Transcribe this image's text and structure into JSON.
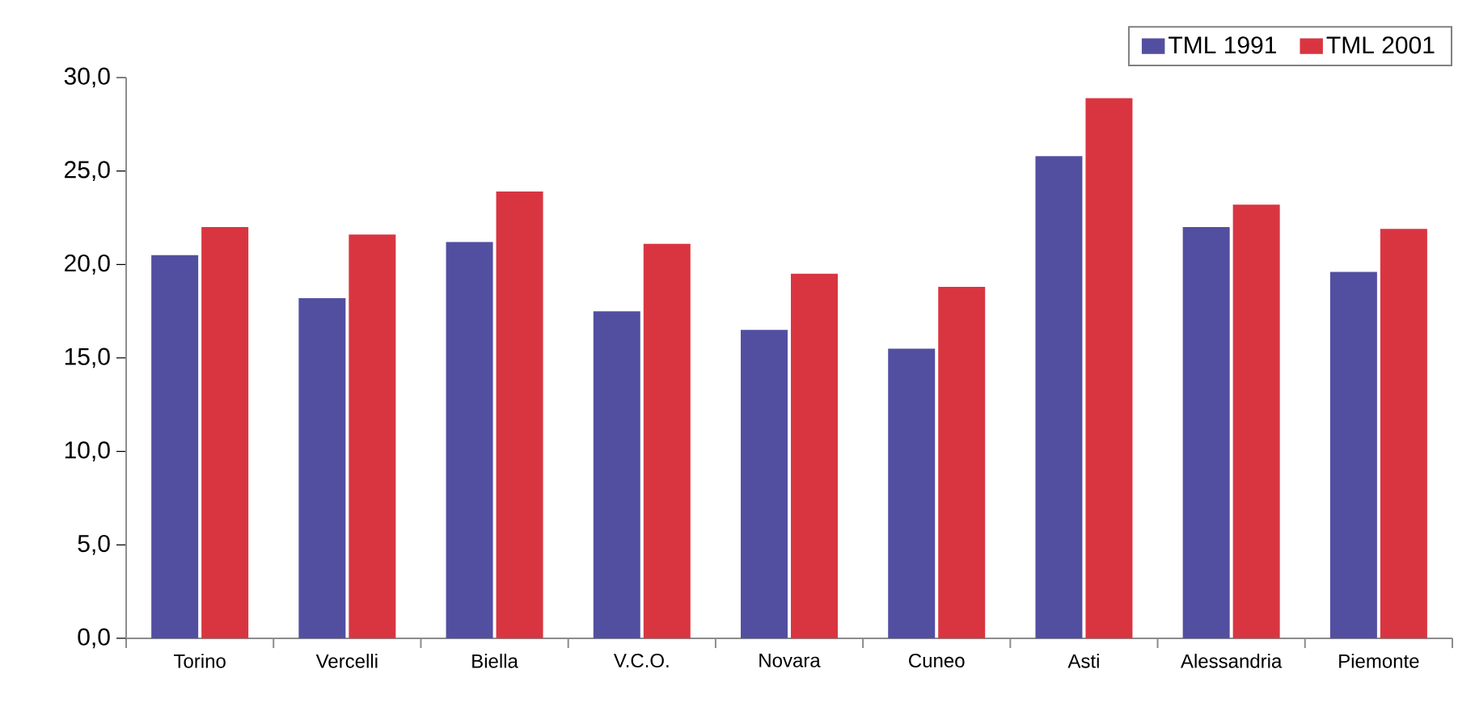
{
  "chart_data": {
    "type": "bar",
    "categories": [
      "Torino",
      "Vercelli",
      "Biella",
      "V.C.O.",
      "Novara",
      "Cuneo",
      "Asti",
      "Alessandria",
      "Piemonte"
    ],
    "series": [
      {
        "name": "TML 1991",
        "color": "#524fa1",
        "values": [
          20.5,
          18.2,
          21.2,
          17.5,
          16.5,
          15.5,
          25.8,
          22.0,
          19.6
        ]
      },
      {
        "name": "TML 2001",
        "color": "#d93541",
        "values": [
          22.0,
          21.6,
          23.9,
          21.1,
          19.5,
          18.8,
          28.9,
          23.2,
          21.9
        ]
      }
    ],
    "ylim": [
      0,
      30
    ],
    "yticks": [
      {
        "value": 0,
        "label": "0,0"
      },
      {
        "value": 5,
        "label": "5,0"
      },
      {
        "value": 10,
        "label": "10,0"
      },
      {
        "value": 15,
        "label": "15,0"
      },
      {
        "value": 20,
        "label": "20,0"
      },
      {
        "value": 25,
        "label": "25,0"
      },
      {
        "value": 30,
        "label": "30,0"
      }
    ],
    "grid": false,
    "legend": "top right"
  }
}
